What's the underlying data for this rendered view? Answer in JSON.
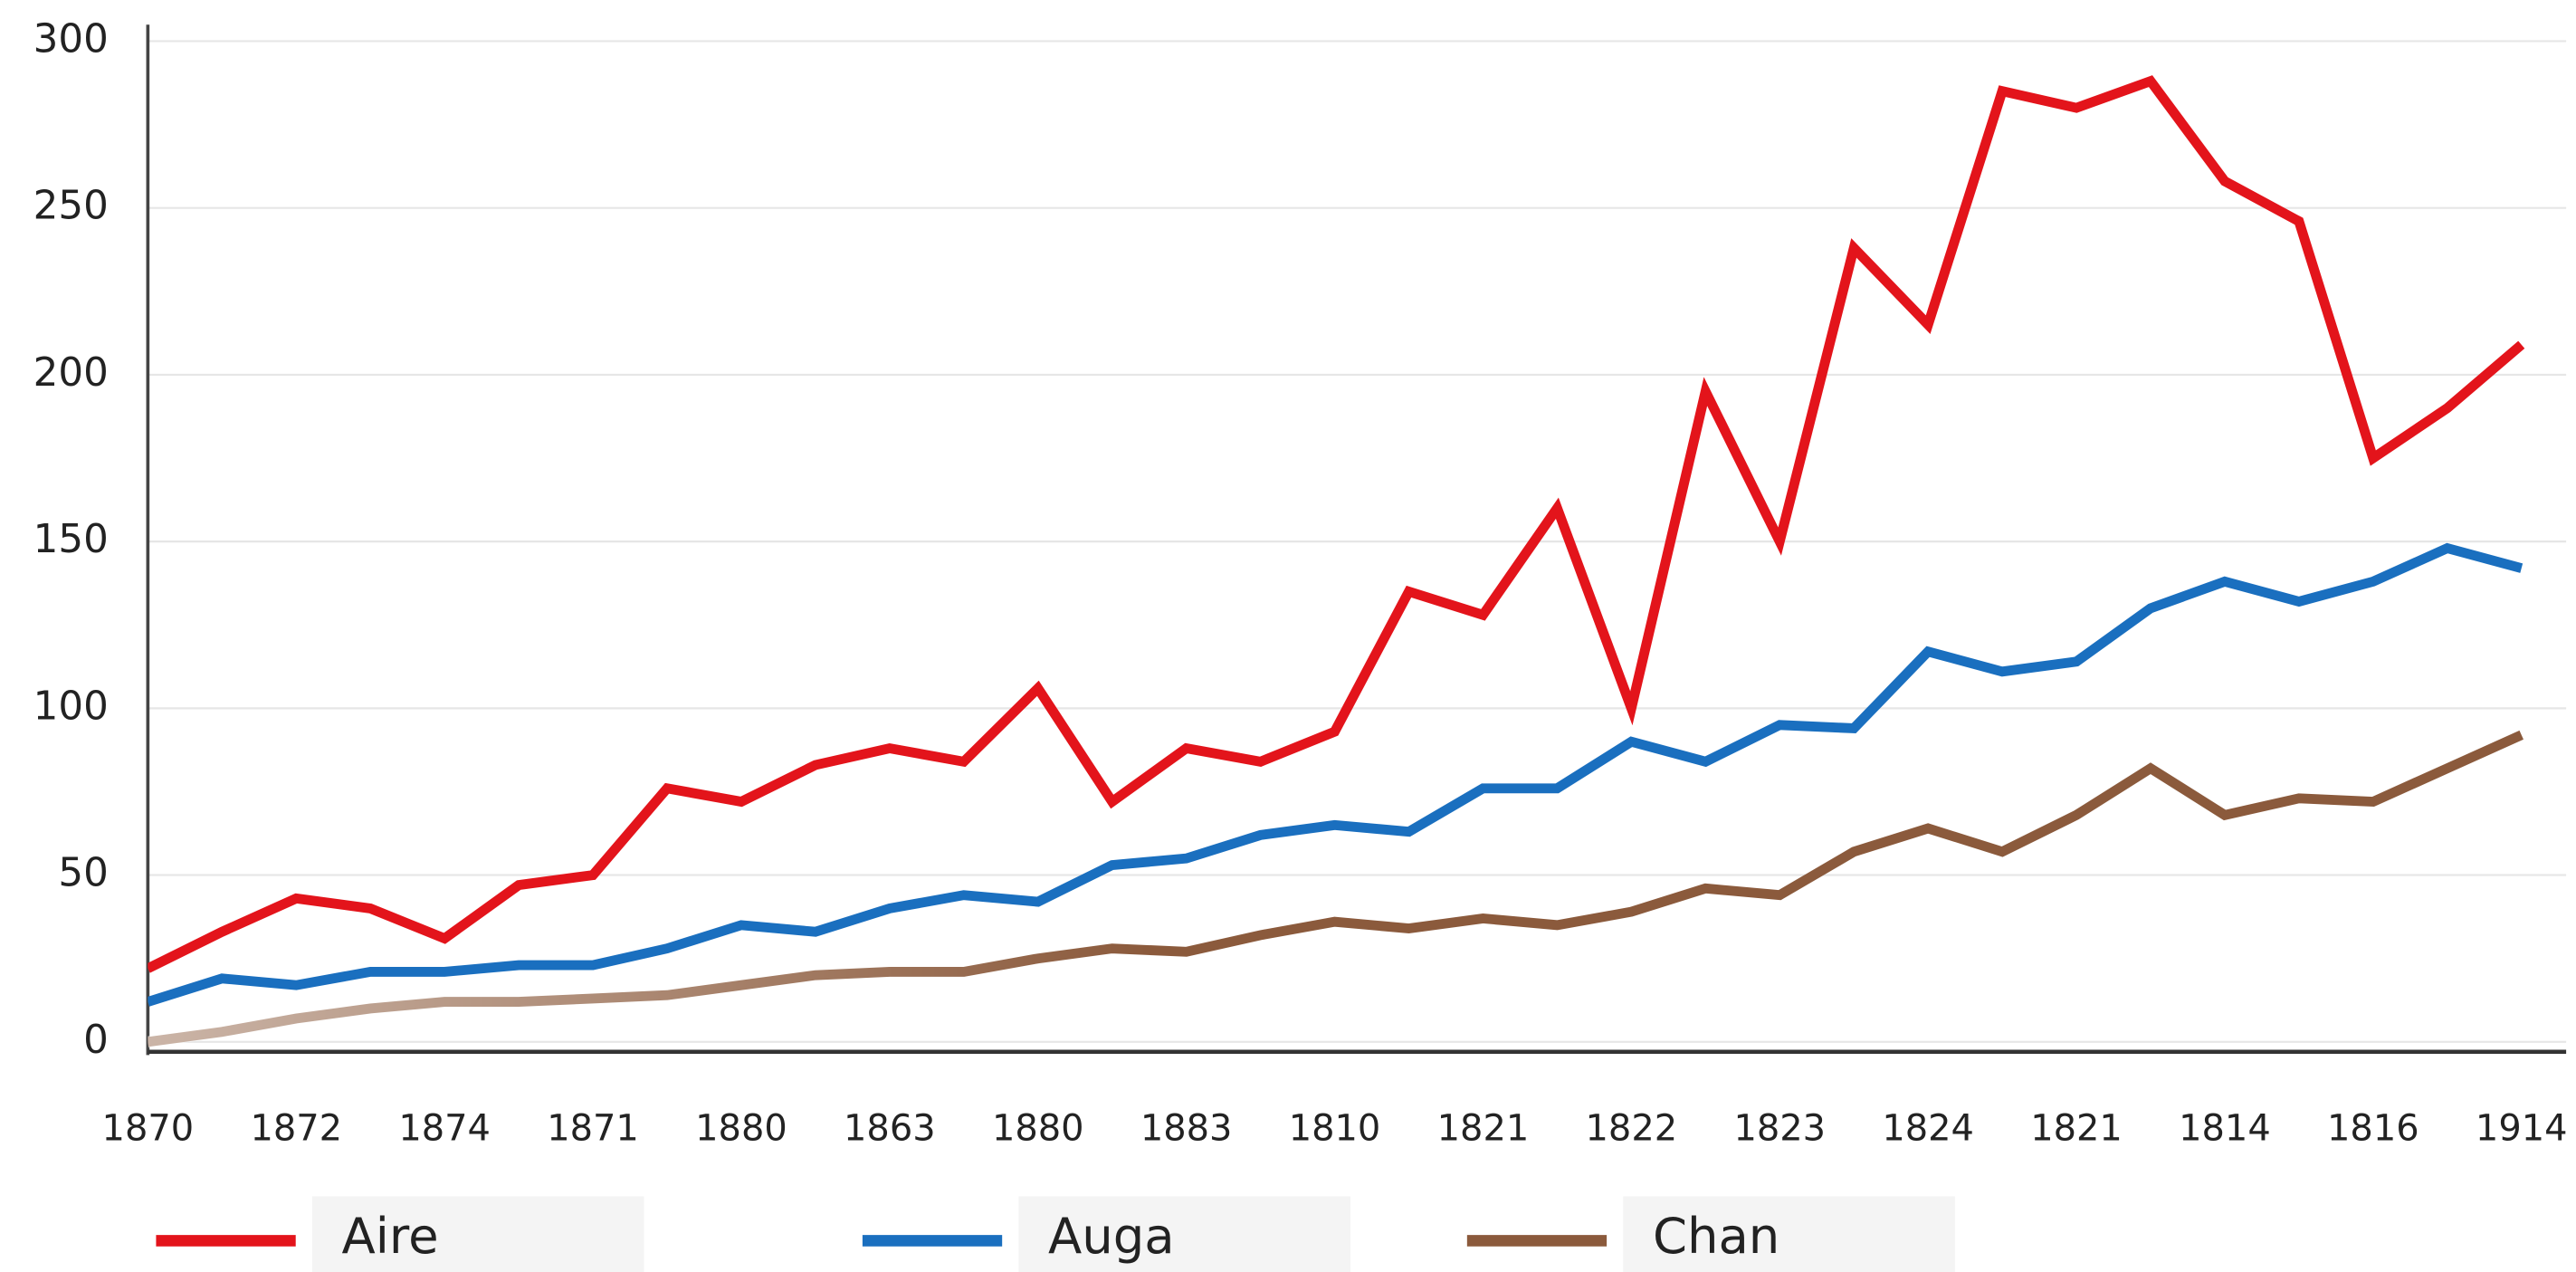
{
  "chart_data": {
    "type": "line",
    "categories": [
      "1870",
      null,
      "1872",
      null,
      "1874",
      null,
      "1871",
      null,
      "1880",
      null,
      "1863",
      null,
      "1880",
      null,
      "1883",
      null,
      "1810",
      null,
      "1821",
      null,
      "1822",
      null,
      "1823",
      null,
      "1824",
      null,
      "1821",
      null,
      "1814",
      null,
      "1816",
      null,
      "1914"
    ],
    "series": [
      {
        "name": "Aire",
        "color": "#e3141b",
        "values": [
          22,
          33,
          43,
          40,
          31,
          47,
          50,
          76,
          72,
          83,
          88,
          84,
          106,
          72,
          88,
          84,
          93,
          135,
          128,
          160,
          100,
          195,
          150,
          238,
          215,
          285,
          280,
          288,
          258,
          246,
          175,
          190,
          209
        ]
      },
      {
        "name": "Auga",
        "color": "#1a6fbf",
        "values": [
          12,
          19,
          17,
          21,
          21,
          23,
          23,
          28,
          35,
          33,
          40,
          44,
          42,
          53,
          55,
          62,
          65,
          63,
          76,
          76,
          90,
          84,
          95,
          94,
          117,
          111,
          114,
          130,
          138,
          132,
          138,
          148,
          142
        ]
      },
      {
        "name": "Chan",
        "color": "#8b5a3c",
        "values": [
          0,
          3,
          7,
          10,
          12,
          12,
          13,
          14,
          17,
          20,
          21,
          21,
          25,
          28,
          27,
          32,
          36,
          34,
          37,
          35,
          39,
          46,
          44,
          57,
          64,
          57,
          68,
          82,
          68,
          73,
          72,
          82,
          92
        ]
      }
    ],
    "ylim": [
      0,
      300
    ],
    "yticks": [
      0,
      50,
      100,
      150,
      200,
      250,
      300
    ],
    "grid": true,
    "legend": "bottom"
  }
}
